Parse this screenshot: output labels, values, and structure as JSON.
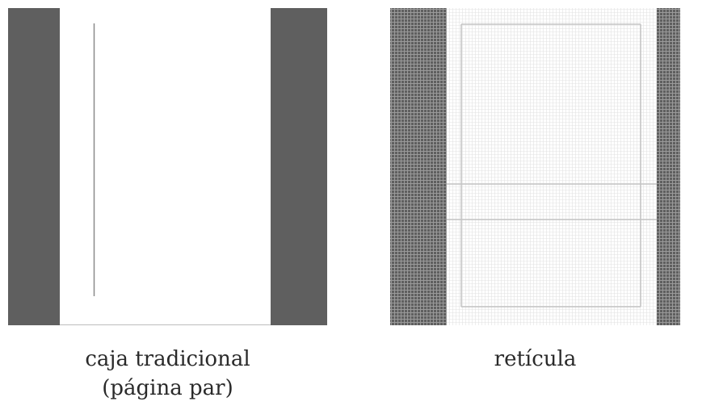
{
  "colors": {
    "margin_dark": "#5f5f5f",
    "page": "#ffffff",
    "page_edge": "#bdbdbd",
    "rule_line": "#8a8a8a",
    "grid_line_light": "#e2e2e2",
    "grid_line_dark_area": "#9a9a9a",
    "grid_emphasis": "#c4c4c4"
  },
  "diagram_traditional": {
    "caption_line1": "caja tradicional",
    "caption_line2": "(página par)"
  },
  "diagram_grid": {
    "caption_line1": "retícula"
  }
}
